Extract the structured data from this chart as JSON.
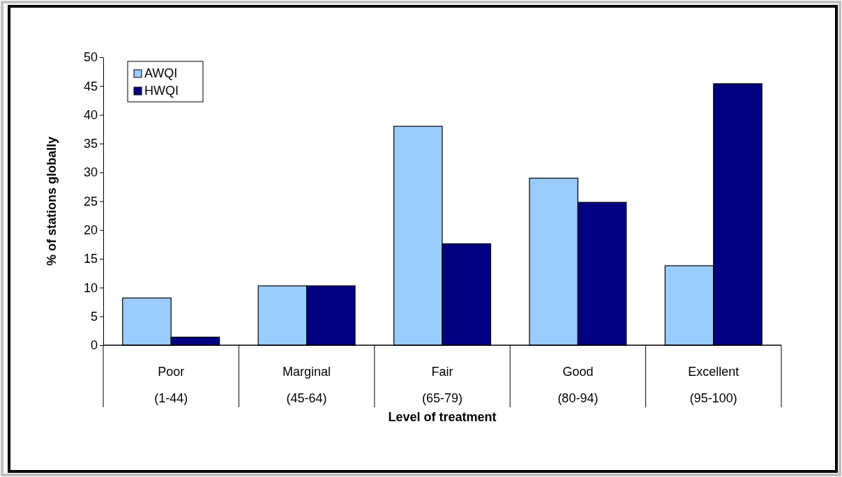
{
  "chart_data": {
    "type": "bar",
    "categories": [
      "Poor\n(1-44)",
      "Marginal\n(45-64)",
      "Fair\n(65-79)",
      "Good\n(80-94)",
      "Excellent\n(95-100)"
    ],
    "series": [
      {
        "name": "AWQI",
        "color": "#99ccff",
        "values": [
          8.2,
          10.3,
          38,
          29,
          13.8
        ]
      },
      {
        "name": "HWQI",
        "color": "#000080",
        "values": [
          1.4,
          10.3,
          17.6,
          24.8,
          45.4
        ]
      }
    ],
    "xlabel": "Level of treatment",
    "ylabel": "% of stations globally",
    "ylim": [
      0,
      50
    ],
    "yticks": [
      0,
      5,
      10,
      15,
      20,
      25,
      30,
      35,
      40,
      45,
      50
    ],
    "legend": "top left"
  }
}
